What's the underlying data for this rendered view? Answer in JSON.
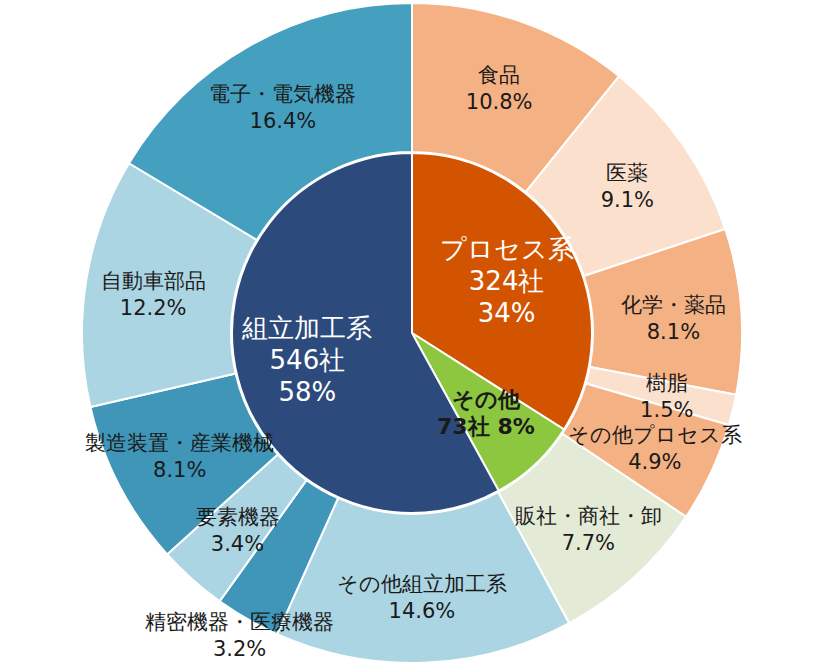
{
  "chart_data": {
    "type": "pie",
    "data_labels": true,
    "groups": {
      "categories": [
        "プロセス系",
        "その他",
        "組立加工系"
      ],
      "counts": [
        324,
        73,
        546
      ],
      "count_labels": [
        "324社",
        "73社",
        "546社"
      ],
      "values": [
        34,
        8,
        58
      ],
      "value_labels": [
        "34%",
        "8%",
        "58%"
      ],
      "colors": [
        "#d35400",
        "#8dc63f",
        "#2d4a7c"
      ]
    },
    "categories": [
      "食品",
      "医薬",
      "化学・薬品",
      "樹脂",
      "その他プロセス系",
      "販社・商社・卸",
      "その他組立加工系",
      "精密機器・医療機器",
      "要素機器",
      "製造装置・産業機械",
      "自動車部品",
      "電子・電気機器"
    ],
    "values": [
      10.8,
      9.1,
      8.1,
      1.5,
      4.9,
      7.7,
      14.6,
      3.2,
      3.4,
      8.1,
      12.2,
      16.4
    ],
    "value_labels": [
      "10.8%",
      "9.1%",
      "8.1%",
      "1.5%",
      "4.9%",
      "7.7%",
      "14.6%",
      "3.2%",
      "3.4%",
      "8.1%",
      "12.2%",
      "16.4%"
    ],
    "colors": [
      "#f4b183",
      "#fbe1cd",
      "#f4b183",
      "#fbe1cd",
      "#f4b183",
      "#e3ebd6",
      "#acd5e3",
      "#3f96b8",
      "#acd5e3",
      "#3f96b8",
      "#acd5e3",
      "#45a0c0"
    ]
  }
}
